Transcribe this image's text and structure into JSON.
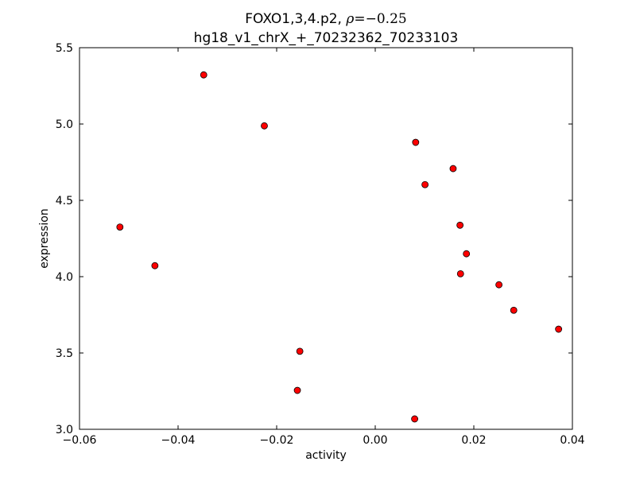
{
  "chart_data": {
    "type": "scatter",
    "title_line1_prefix": "FOXO1,3,4.p2, ",
    "title_rho_symbol": "ρ",
    "title_rho_value": "=−0.25",
    "title_line2": "hg18_v1_chrX_+_70232362_70233103",
    "xlabel": "activity",
    "ylabel": "expression",
    "xlim": [
      -0.06,
      0.04
    ],
    "ylim": [
      3.0,
      5.5
    ],
    "xticks": [
      -0.06,
      -0.04,
      -0.02,
      0.0,
      0.02,
      0.04
    ],
    "xtick_labels": [
      "−0.06",
      "−0.04",
      "−0.02",
      "0.00",
      "0.02",
      "0.04"
    ],
    "yticks": [
      3.0,
      3.5,
      4.0,
      4.5,
      5.0,
      5.5
    ],
    "ytick_labels": [
      "3.0",
      "3.5",
      "4.0",
      "4.5",
      "5.0",
      "5.5"
    ],
    "marker_color": "#ff0000",
    "marker_edge_color": "#000000",
    "grid": false,
    "points": [
      {
        "x": -0.0518,
        "y": 4.325
      },
      {
        "x": -0.0447,
        "y": 4.072
      },
      {
        "x": -0.0348,
        "y": 5.322
      },
      {
        "x": -0.0225,
        "y": 4.988
      },
      {
        "x": -0.0153,
        "y": 3.511
      },
      {
        "x": -0.0158,
        "y": 3.255
      },
      {
        "x": 0.0082,
        "y": 4.88
      },
      {
        "x": 0.0101,
        "y": 4.603
      },
      {
        "x": 0.0158,
        "y": 4.708
      },
      {
        "x": 0.0172,
        "y": 4.337
      },
      {
        "x": 0.0185,
        "y": 4.15
      },
      {
        "x": 0.0173,
        "y": 4.019
      },
      {
        "x": 0.0251,
        "y": 3.947
      },
      {
        "x": 0.0281,
        "y": 3.78
      },
      {
        "x": 0.0372,
        "y": 3.656
      },
      {
        "x": 0.008,
        "y": 3.068
      }
    ]
  }
}
